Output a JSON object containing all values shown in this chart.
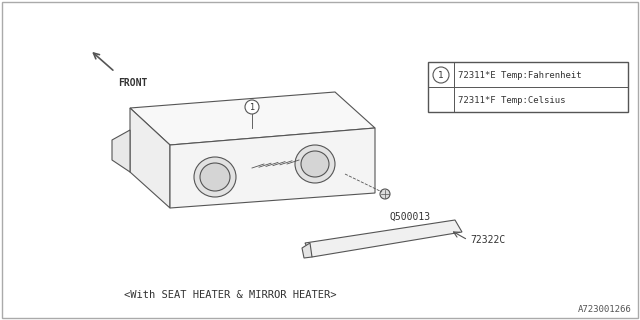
{
  "bg_color": "#ffffff",
  "border_color": "#aaaaaa",
  "line_color": "#555555",
  "diagram_id": "A723001266",
  "bottom_note": "<With SEAT HEATER & MIRROR HEATER>",
  "legend_title_circle": "1",
  "legend_line1": "72311*E Temp:Fahrenheit",
  "legend_line2": "72311*F Temp:Celsius",
  "part_label1": "Q500013",
  "part_label2": "72322C",
  "front_label": "FRONT"
}
